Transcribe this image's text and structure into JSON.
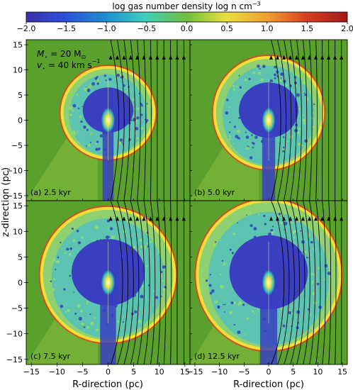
{
  "colorbar": {
    "label": "log gas number density log n cm",
    "label_sup": "−3",
    "ticks": [
      "−2.0",
      "−1.5",
      "−1.0",
      "−0.5",
      "0.0",
      "0.5",
      "1.0",
      "1.5",
      "2.0"
    ]
  },
  "annotation": {
    "mass_symbol": "M",
    "mass_sub": "⋆",
    "mass_value": " = 20 M",
    "mass_unit_sub": "⊙",
    "vel_symbol": "v",
    "vel_sub": "⋆",
    "vel_value": " = 40 km s",
    "vel_sup": "−1"
  },
  "panels": [
    {
      "id": "a",
      "label": "(a) 2.5 kyr",
      "shell_radius_pc": 9.0
    },
    {
      "id": "b",
      "label": "(b) 5.0 kyr",
      "shell_radius_pc": 11.0
    },
    {
      "id": "c",
      "label": "(c) 7.5 kyr",
      "shell_radius_pc": 13.0
    },
    {
      "id": "d",
      "label": "(d) 12.5 kyr",
      "shell_radius_pc": 14.5
    }
  ],
  "axes": {
    "xlabel": "R-direction (pc)",
    "ylabel": "z-direction (pc)",
    "xticks": [
      "−15",
      "−10",
      "−5",
      "0",
      "5",
      "10",
      "15"
    ],
    "yticks": [
      "15",
      "10",
      "5",
      "0",
      "−5",
      "−10",
      "−15"
    ],
    "xlim": [
      -16,
      16
    ],
    "ylim": [
      -16,
      16
    ]
  },
  "colors": {
    "ambient": "#5aa02c",
    "cavity": "#3a3fc0",
    "shell": "#f3e13a",
    "shell_edge": "#e0451a",
    "turbulent": "#4ec0c8"
  }
}
